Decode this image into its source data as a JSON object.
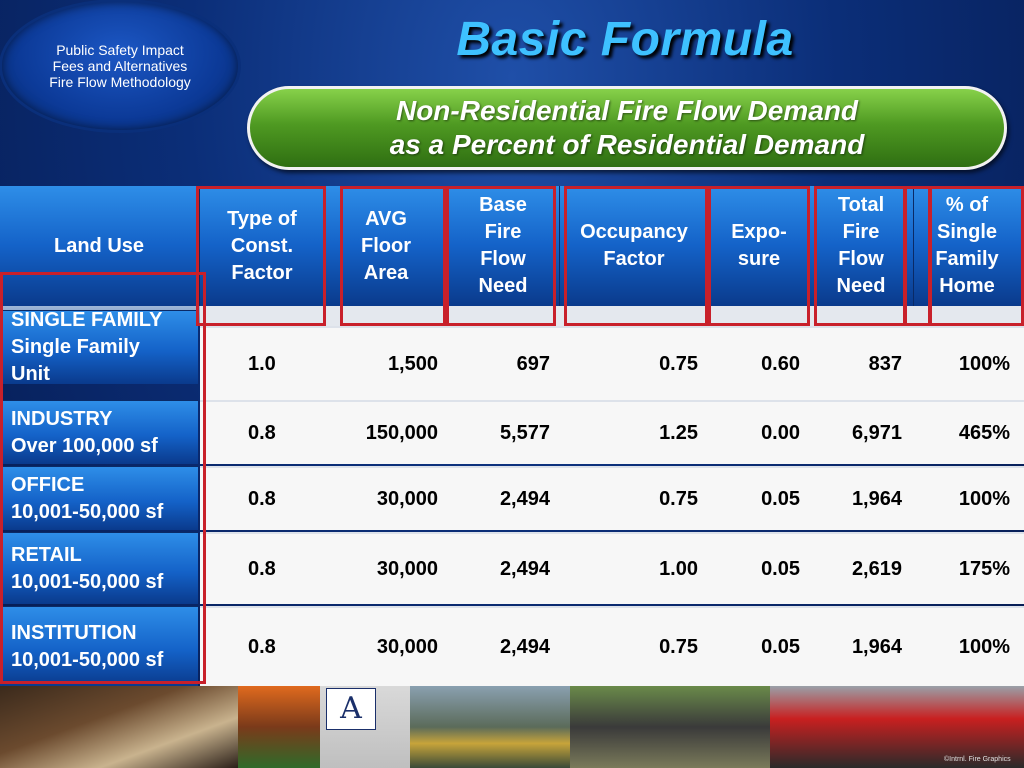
{
  "badge": {
    "lines": [
      "Public Safety Impact",
      "Fees and Alternatives",
      "Fire Flow Methodology"
    ]
  },
  "title": "Basic Formula",
  "subtitle": {
    "line1": "Non-Residential Fire Flow Demand",
    "line2": "as a Percent of Residential Demand"
  },
  "table": {
    "headers": {
      "land_use": "Land Use",
      "type_const": [
        "Type of",
        "Const.",
        "Factor"
      ],
      "avg_floor": [
        "AVG",
        "Floor",
        "Area"
      ],
      "base_fire": [
        "Base",
        "Fire",
        "Flow",
        "Need"
      ],
      "occupancy": [
        "Occupancy",
        "Factor"
      ],
      "exposure": [
        "Expo-",
        "sure"
      ],
      "total_fire": [
        "Total",
        "Fire",
        "Flow",
        "Need"
      ],
      "pct_single": [
        "% of",
        "Single",
        "Family",
        "Home"
      ]
    },
    "rows": [
      {
        "land_use": [
          "SINGLE FAMILY",
          "Single Family",
          "Unit"
        ],
        "type": "1.0",
        "area": "1,500",
        "base": "697",
        "occ": "0.75",
        "exp": "0.60",
        "total": "837",
        "pct": "100%"
      },
      {
        "land_use": [
          "INDUSTRY",
          "Over 100,000 sf"
        ],
        "type": "0.8",
        "area": "150,000",
        "base": "5,577",
        "occ": "1.25",
        "exp": "0.00",
        "total": "6,971",
        "pct": "465%"
      },
      {
        "land_use": [
          "OFFICE",
          "10,001-50,000 sf"
        ],
        "type": "0.8",
        "area": "30,000",
        "base": "2,494",
        "occ": "0.75",
        "exp": "0.05",
        "total": "1,964",
        "pct": "100%"
      },
      {
        "land_use": [
          "RETAIL",
          "10,001-50,000 sf"
        ],
        "type": "0.8",
        "area": "30,000",
        "base": "2,494",
        "occ": "1.00",
        "exp": "0.05",
        "total": "2,619",
        "pct": "175%"
      },
      {
        "land_use": [
          "INSTITUTION",
          "10,001-50,000 sf"
        ],
        "type": "0.8",
        "area": "30,000",
        "base": "2,494",
        "occ": "0.75",
        "exp": "0.05",
        "total": "1,964",
        "pct": "100%"
      }
    ]
  },
  "colors": {
    "title": "#3ec1ff",
    "highlight_box": "#c8202a",
    "subtitle_green": "#4f9a22",
    "header_blue": "#1462c8"
  },
  "logo_glyph": "A",
  "credit": "©Intrnl. Fire Graphics"
}
